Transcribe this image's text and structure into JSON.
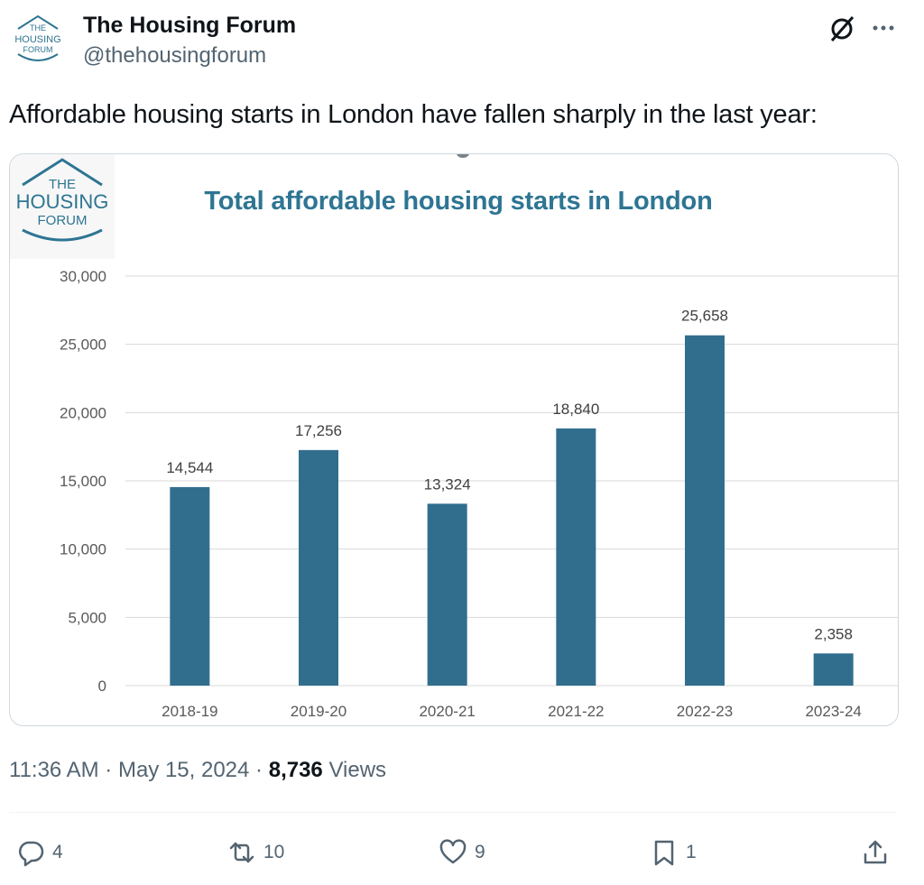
{
  "tweet": {
    "author_name": "The Housing Forum",
    "author_handle": "@thehousingforum",
    "avatar_text": [
      "THE",
      "HOUSING",
      "FORUM"
    ],
    "text": "Affordable housing starts in London have fallen sharply in the  last year:",
    "timestamp": "11:36 AM · May 15, 2024 · ",
    "views_count": "8,736",
    "views_label": " Views"
  },
  "actions": {
    "replies": "4",
    "retweets": "10",
    "likes": "9",
    "bookmarks": "1"
  },
  "icons": [
    "avatar-logo",
    "grok-icon",
    "more-icon",
    "reply-icon",
    "retweet-icon",
    "like-icon",
    "bookmark-icon",
    "share-icon"
  ],
  "colors": {
    "bar": "#316e8e",
    "title": "#2e7593",
    "logo": "#2e7593",
    "text_secondary": "#536471"
  },
  "chart_logo_text": [
    "THE",
    "HOUSING",
    "FORUM"
  ],
  "chart_data": {
    "type": "bar",
    "title": "Total affordable housing starts in London",
    "categories": [
      "2018-19",
      "2019-20",
      "2020-21",
      "2021-22",
      "2022-23",
      "2023-24"
    ],
    "values": [
      14544,
      17256,
      13324,
      18840,
      25658,
      2358
    ],
    "value_labels": [
      "14,544",
      "17,256",
      "13,324",
      "18,840",
      "25,658",
      "2,358"
    ],
    "yticks": [
      "0",
      "5,000",
      "10,000",
      "15,000",
      "20,000",
      "25,000",
      "30,000"
    ],
    "ylim": [
      0,
      30000
    ],
    "grid": true,
    "xlabel": "",
    "ylabel": ""
  }
}
